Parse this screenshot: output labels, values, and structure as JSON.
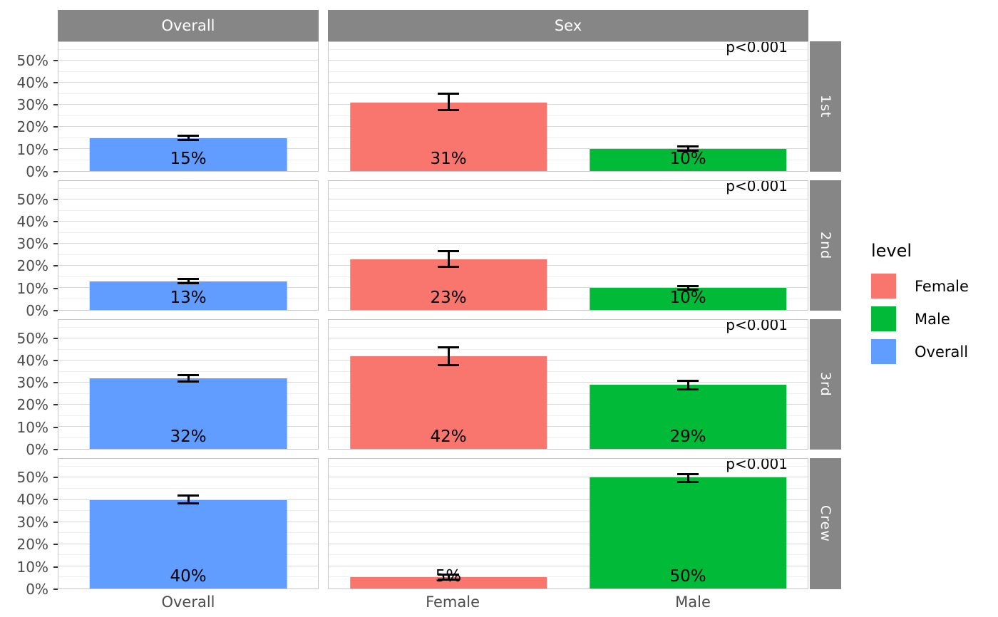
{
  "colors": {
    "strip_background": "#868686",
    "strip_text": "#ffffff",
    "axis_text": "#4d4d4d",
    "grid_major": "#d9d9d9",
    "grid_minor": "#efefef",
    "panel_border": "#c6c6c6",
    "errorbar": "#000000"
  },
  "chart_data": {
    "type": "bar",
    "facet_col_labels": [
      "Overall",
      "Sex"
    ],
    "facet_row_labels": [
      "1st",
      "2nd",
      "3rd",
      "Crew"
    ],
    "x_categories": {
      "Overall": [
        "Overall"
      ],
      "Sex": [
        "Female",
        "Male"
      ]
    },
    "y_ticks": [
      "0%",
      "10%",
      "20%",
      "30%",
      "40%",
      "50%"
    ],
    "y_tick_values": [
      0,
      10,
      20,
      30,
      40,
      50
    ],
    "ylim": [
      0,
      58.5
    ],
    "grid": {
      "major_step": 10,
      "minor_step": 5,
      "minor_max": 55
    },
    "series_colors": {
      "Female": "#F8766D",
      "Male": "#00BA38",
      "Overall": "#619CFF"
    },
    "legend": {
      "title": "level",
      "position": "right",
      "entries": [
        {
          "label": "Female",
          "color": "#F8766D"
        },
        {
          "label": "Male",
          "color": "#00BA38"
        },
        {
          "label": "Overall",
          "color": "#619CFF"
        }
      ]
    },
    "panels": [
      {
        "row": "1st",
        "col": "Overall",
        "p_value": "",
        "bars": [
          {
            "category": "Overall",
            "level": "Overall",
            "value": 15,
            "label": "15%",
            "ci": [
              13.5,
              16.5
            ]
          }
        ]
      },
      {
        "row": "1st",
        "col": "Sex",
        "p_value": "p<0.001",
        "bars": [
          {
            "category": "Female",
            "level": "Female",
            "value": 31,
            "label": "31%",
            "ci": [
              27,
              35.5
            ]
          },
          {
            "category": "Male",
            "level": "Male",
            "value": 10,
            "label": "10%",
            "ci": [
              8.7,
              11.8
            ]
          }
        ]
      },
      {
        "row": "2nd",
        "col": "Overall",
        "p_value": "",
        "bars": [
          {
            "category": "Overall",
            "level": "Overall",
            "value": 13,
            "label": "13%",
            "ci": [
              11.5,
              14.5
            ]
          }
        ]
      },
      {
        "row": "2nd",
        "col": "Sex",
        "p_value": "p<0.001",
        "bars": [
          {
            "category": "Female",
            "level": "Female",
            "value": 23,
            "label": "23%",
            "ci": [
              19,
              27
            ]
          },
          {
            "category": "Male",
            "level": "Male",
            "value": 10,
            "label": "10%",
            "ci": [
              8.6,
              11.4
            ]
          }
        ]
      },
      {
        "row": "3rd",
        "col": "Overall",
        "p_value": "",
        "bars": [
          {
            "category": "Overall",
            "level": "Overall",
            "value": 32,
            "label": "32%",
            "ci": [
              30,
              34
            ]
          }
        ]
      },
      {
        "row": "3rd",
        "col": "Sex",
        "p_value": "p<0.001",
        "bars": [
          {
            "category": "Female",
            "level": "Female",
            "value": 42,
            "label": "42%",
            "ci": [
              37.5,
              46.5
            ]
          },
          {
            "category": "Male",
            "level": "Male",
            "value": 29,
            "label": "29%",
            "ci": [
              26.5,
              31.5
            ]
          }
        ]
      },
      {
        "row": "Crew",
        "col": "Overall",
        "p_value": "",
        "bars": [
          {
            "category": "Overall",
            "level": "Overall",
            "value": 40,
            "label": "40%",
            "ci": [
              38,
              42.5
            ]
          }
        ]
      },
      {
        "row": "Crew",
        "col": "Sex",
        "p_value": "p<0.001",
        "bars": [
          {
            "category": "Female",
            "level": "Female",
            "value": 5,
            "label": "5%",
            "ci": [
              3.5,
              6.8
            ]
          },
          {
            "category": "Male",
            "level": "Male",
            "value": 50,
            "label": "50%",
            "ci": [
              47.5,
              52
            ]
          }
        ]
      }
    ]
  }
}
